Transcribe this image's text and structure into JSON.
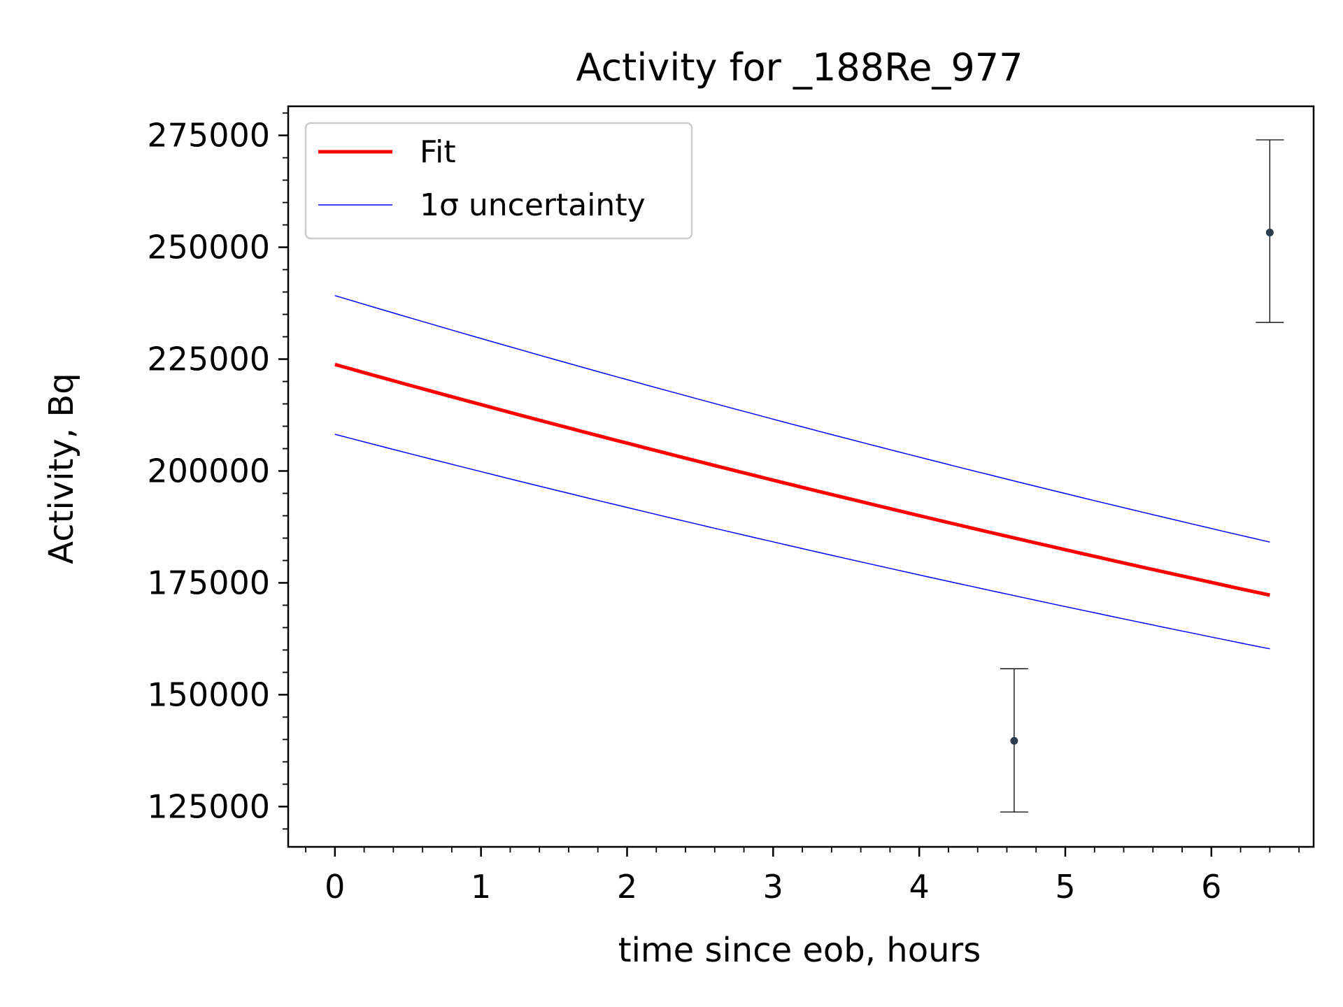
{
  "chart_data": {
    "type": "line",
    "title": "Activity for _188Re_977",
    "xlabel": "time since eob, hours",
    "ylabel": "Activity, Bq",
    "xlim": [
      -0.32,
      6.7
    ],
    "ylim": [
      116000,
      281500
    ],
    "xticks": [
      0,
      1,
      2,
      3,
      4,
      5,
      6
    ],
    "yticks": [
      125000,
      150000,
      175000,
      200000,
      225000,
      250000,
      275000
    ],
    "x_minor_step": 0.2,
    "y_minor_step": 5000,
    "grid": false,
    "legend_position": "upper-left",
    "series": [
      {
        "name": "Fit",
        "color": "#ff0000",
        "kind": "fit",
        "x": [
          0,
          6.4
        ],
        "decay_rate_per_hour": 0.0409,
        "y_start": 223800
      },
      {
        "name": "1σ uncertainty",
        "color": "#0000ff",
        "kind": "band-upper",
        "x": [
          0,
          6.4
        ],
        "decay_rate_per_hour": 0.0409,
        "y_start": 239200
      },
      {
        "name": "",
        "color": "#0000ff",
        "kind": "band-lower",
        "x": [
          0,
          6.4
        ],
        "decay_rate_per_hour": 0.0409,
        "y_start": 208200
      }
    ],
    "points": [
      {
        "x": 4.65,
        "y": 139700,
        "yerr_low": 123800,
        "yerr_high": 155800
      },
      {
        "x": 6.4,
        "y": 253300,
        "yerr_low": 233200,
        "yerr_high": 274000
      }
    ],
    "point_color": "#2c3e50"
  }
}
